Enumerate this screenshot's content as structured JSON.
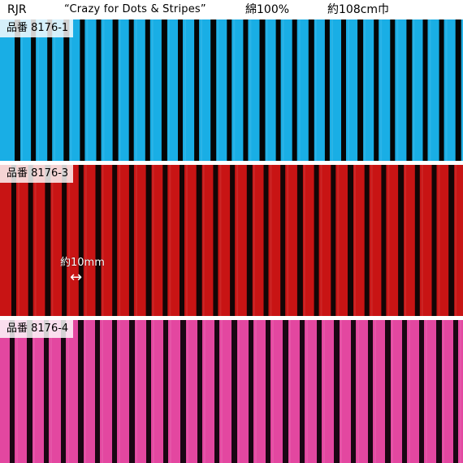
{
  "header": {
    "brand": "RJR",
    "collection": "“Crazy for Dots & Stripes”",
    "material": "綿100%",
    "width": "約108cm巾"
  },
  "swatches": [
    {
      "label": "品番 8176-1",
      "color": "#19aee5",
      "stripe_color": "#050505"
    },
    {
      "label": "品番 8176-3",
      "color": "#c81414",
      "stripe_color": "#120606"
    },
    {
      "label": "品番 8176-4",
      "color": "#e347a0",
      "stripe_color": "#1a0713"
    }
  ],
  "measurement": {
    "text": "約10mm",
    "arrow": "↔"
  }
}
